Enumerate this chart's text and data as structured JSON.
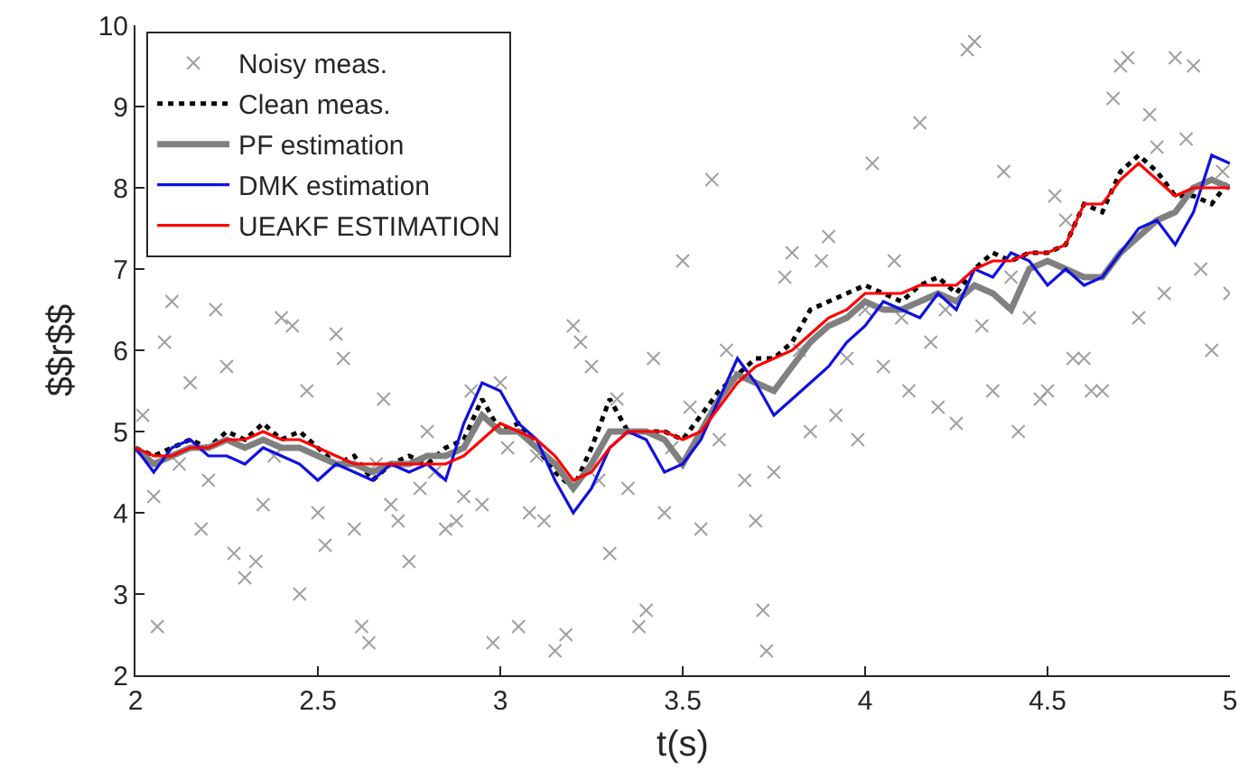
{
  "chart_data": {
    "type": "line",
    "xlabel": "t(s)",
    "ylabel": "$$r$$",
    "xlim": [
      2,
      5
    ],
    "ylim": [
      2,
      10
    ],
    "xticks": [
      2,
      2.5,
      3,
      3.5,
      4,
      4.5,
      5
    ],
    "yticks": [
      2,
      3,
      4,
      5,
      6,
      7,
      8,
      9,
      10
    ],
    "grid": false,
    "legend": "top left",
    "x": [
      2.0,
      2.05,
      2.1,
      2.15,
      2.2,
      2.25,
      2.3,
      2.35,
      2.4,
      2.45,
      2.5,
      2.55,
      2.6,
      2.65,
      2.7,
      2.75,
      2.8,
      2.85,
      2.9,
      2.95,
      3.0,
      3.05,
      3.1,
      3.15,
      3.2,
      3.25,
      3.3,
      3.35,
      3.4,
      3.45,
      3.5,
      3.55,
      3.6,
      3.65,
      3.7,
      3.75,
      3.8,
      3.85,
      3.9,
      3.95,
      4.0,
      4.05,
      4.1,
      4.15,
      4.2,
      4.25,
      4.3,
      4.35,
      4.4,
      4.45,
      4.5,
      4.55,
      4.6,
      4.65,
      4.7,
      4.75,
      4.8,
      4.85,
      4.9,
      4.95,
      5.0
    ],
    "series": [
      {
        "name": "Noisy meas.",
        "type": "scatter",
        "marker": "cross",
        "color": "#a0a0a0",
        "x": [
          2.02,
          2.05,
          2.06,
          2.08,
          2.1,
          2.12,
          2.15,
          2.18,
          2.2,
          2.22,
          2.25,
          2.27,
          2.3,
          2.33,
          2.35,
          2.38,
          2.4,
          2.43,
          2.45,
          2.47,
          2.5,
          2.52,
          2.55,
          2.57,
          2.6,
          2.62,
          2.64,
          2.66,
          2.68,
          2.7,
          2.72,
          2.75,
          2.78,
          2.8,
          2.82,
          2.85,
          2.88,
          2.9,
          2.92,
          2.95,
          2.98,
          3.0,
          3.02,
          3.05,
          3.08,
          3.1,
          3.12,
          3.15,
          3.18,
          3.2,
          3.22,
          3.25,
          3.27,
          3.3,
          3.32,
          3.35,
          3.38,
          3.4,
          3.42,
          3.45,
          3.47,
          3.5,
          3.52,
          3.55,
          3.58,
          3.6,
          3.62,
          3.65,
          3.67,
          3.7,
          3.72,
          3.73,
          3.75,
          3.78,
          3.8,
          3.82,
          3.85,
          3.88,
          3.9,
          3.92,
          3.95,
          3.98,
          4.0,
          4.02,
          4.05,
          4.08,
          4.1,
          4.12,
          4.15,
          4.18,
          4.2,
          4.22,
          4.25,
          4.28,
          4.3,
          4.32,
          4.35,
          4.38,
          4.4,
          4.42,
          4.45,
          4.48,
          4.5,
          4.52,
          4.55,
          4.57,
          4.6,
          4.62,
          4.65,
          4.68,
          4.7,
          4.72,
          4.75,
          4.78,
          4.8,
          4.82,
          4.85,
          4.88,
          4.9,
          4.92,
          4.95,
          4.98,
          5.0
        ],
        "values": [
          5.2,
          4.2,
          2.6,
          6.1,
          6.6,
          4.6,
          5.6,
          3.8,
          4.4,
          6.5,
          5.8,
          3.5,
          3.2,
          3.4,
          4.1,
          4.7,
          6.4,
          6.3,
          3.0,
          5.5,
          4.0,
          3.6,
          6.2,
          5.9,
          3.8,
          2.6,
          2.4,
          4.6,
          5.4,
          4.1,
          3.9,
          3.4,
          4.3,
          5.0,
          4.5,
          3.8,
          3.9,
          4.2,
          5.5,
          4.1,
          2.4,
          5.6,
          4.8,
          2.6,
          4.0,
          4.7,
          3.9,
          2.3,
          2.5,
          6.3,
          6.1,
          5.8,
          4.4,
          3.5,
          5.4,
          4.3,
          2.6,
          2.8,
          5.9,
          4.0,
          4.8,
          7.1,
          5.3,
          3.8,
          8.1,
          4.9,
          6.0,
          5.7,
          4.4,
          3.9,
          2.8,
          2.3,
          4.5,
          6.9,
          7.2,
          6.0,
          5.0,
          7.1,
          7.4,
          5.2,
          5.9,
          4.9,
          6.5,
          8.3,
          5.8,
          7.1,
          6.4,
          5.5,
          8.8,
          6.1,
          5.3,
          6.5,
          5.1,
          9.7,
          9.8,
          6.3,
          5.5,
          8.2,
          6.9,
          5.0,
          6.4,
          5.4,
          5.5,
          7.9,
          7.6,
          5.9,
          5.9,
          5.5,
          5.5,
          9.1,
          9.5,
          9.6,
          6.4,
          8.9,
          8.5,
          6.7,
          9.6,
          8.6,
          9.5,
          7.0,
          6.0,
          8.2,
          6.7
        ]
      },
      {
        "name": "Clean meas.",
        "line_style": "dotted",
        "color": "#000000",
        "values": [
          4.8,
          4.7,
          4.8,
          4.9,
          4.8,
          5.0,
          4.9,
          5.1,
          4.9,
          5.0,
          4.8,
          4.6,
          4.7,
          4.4,
          4.6,
          4.7,
          4.6,
          4.8,
          4.9,
          5.4,
          5.0,
          5.1,
          4.8,
          4.5,
          4.3,
          4.8,
          5.4,
          5.0,
          5.0,
          5.0,
          4.9,
          5.2,
          5.5,
          5.7,
          5.9,
          5.9,
          6.1,
          6.5,
          6.6,
          6.7,
          6.8,
          6.7,
          6.6,
          6.8,
          6.9,
          6.7,
          7.0,
          7.2,
          7.1,
          7.2,
          7.2,
          7.3,
          7.8,
          7.7,
          8.2,
          8.4,
          8.2,
          7.9,
          7.9,
          7.8,
          8.1
        ]
      },
      {
        "name": "PF estimation",
        "line_style": "solid",
        "color": "#808080",
        "values": [
          4.8,
          4.6,
          4.7,
          4.8,
          4.8,
          4.9,
          4.8,
          4.9,
          4.8,
          4.8,
          4.7,
          4.6,
          4.6,
          4.5,
          4.6,
          4.6,
          4.7,
          4.7,
          4.8,
          5.2,
          5.0,
          5.0,
          4.8,
          4.6,
          4.3,
          4.6,
          5.0,
          5.0,
          5.0,
          4.9,
          4.6,
          5.0,
          5.4,
          5.7,
          5.6,
          5.5,
          5.8,
          6.1,
          6.3,
          6.4,
          6.6,
          6.5,
          6.5,
          6.6,
          6.7,
          6.6,
          6.8,
          6.7,
          6.5,
          7.0,
          7.1,
          7.0,
          6.9,
          6.9,
          7.2,
          7.4,
          7.6,
          7.7,
          8.0,
          8.1,
          8.0
        ]
      },
      {
        "name": "DMK estimation",
        "line_style": "solid",
        "color": "#1010e0",
        "values": [
          4.8,
          4.5,
          4.8,
          4.9,
          4.7,
          4.7,
          4.6,
          4.8,
          4.7,
          4.6,
          4.4,
          4.6,
          4.5,
          4.4,
          4.6,
          4.5,
          4.6,
          4.4,
          5.1,
          5.6,
          5.5,
          5.1,
          4.9,
          4.4,
          4.0,
          4.3,
          4.8,
          5.0,
          4.9,
          4.5,
          4.6,
          4.9,
          5.4,
          5.9,
          5.6,
          5.2,
          5.4,
          5.6,
          5.8,
          6.1,
          6.3,
          6.6,
          6.5,
          6.4,
          6.7,
          6.5,
          7.0,
          6.9,
          7.2,
          7.1,
          6.8,
          7.0,
          6.8,
          6.9,
          7.2,
          7.5,
          7.6,
          7.3,
          7.7,
          8.4,
          8.3
        ]
      },
      {
        "name": "UEAKF ESTIMATION",
        "line_style": "solid",
        "color": "#ff0000",
        "values": [
          4.8,
          4.7,
          4.7,
          4.8,
          4.8,
          4.9,
          4.9,
          5.0,
          4.9,
          4.9,
          4.8,
          4.7,
          4.6,
          4.6,
          4.6,
          4.6,
          4.6,
          4.6,
          4.7,
          4.9,
          5.1,
          5.0,
          4.9,
          4.7,
          4.4,
          4.5,
          4.8,
          5.0,
          5.0,
          5.0,
          4.9,
          5.0,
          5.3,
          5.6,
          5.8,
          5.9,
          6.0,
          6.2,
          6.4,
          6.5,
          6.7,
          6.7,
          6.7,
          6.8,
          6.8,
          6.8,
          7.0,
          7.1,
          7.1,
          7.2,
          7.2,
          7.3,
          7.8,
          7.8,
          8.1,
          8.3,
          8.1,
          7.9,
          8.0,
          8.0,
          8.0
        ]
      }
    ]
  }
}
